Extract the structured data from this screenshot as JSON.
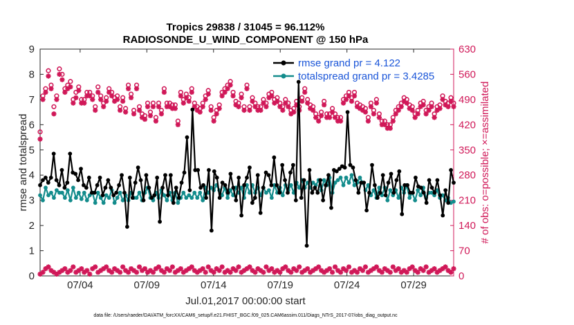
{
  "chart_data": {
    "type": "line",
    "title": "Tropics 29838 / 31045 = 96.112%",
    "subtitle": "RADIOSONDE_U_WIND_COMPONENT @ 150 hPa",
    "xlabel": "Jul.01,2017 00:00:00 start",
    "ylabel": "rmse and totalspread",
    "ylabel_right": "# of obs: o=possible; ×=assimilated",
    "xlim": [
      0,
      31
    ],
    "ylim": [
      0,
      9
    ],
    "ylim_right": [
      0,
      630
    ],
    "x_ticks": [
      {
        "x": 3,
        "label": "07/04"
      },
      {
        "x": 8,
        "label": "07/09"
      },
      {
        "x": 13,
        "label": "07/14"
      },
      {
        "x": 18,
        "label": "07/19"
      },
      {
        "x": 23,
        "label": "07/24"
      },
      {
        "x": 28,
        "label": "07/29"
      }
    ],
    "y_ticks": [
      "0",
      "1",
      "2",
      "3",
      "4",
      "5",
      "6",
      "7",
      "8",
      "9"
    ],
    "y_ticks_right": [
      "0",
      "70",
      "140",
      "210",
      "280",
      "350",
      "420",
      "490",
      "560",
      "630"
    ],
    "legend": [
      "rmse grand pr = 4.122",
      "totalspread grand pr = 3.4285"
    ],
    "legend_position": "top-right",
    "footer": "data file: /Users/raeder/DAI/ATM_forcXX/CAM6_setup/f.e21.FHIST_BGC.f09_025.CAM6assim.011/Diags_NTrS_2017-07/obs_diag_output.nc",
    "colors": {
      "rmse": "#000000",
      "totalspread": "#138c8c",
      "obs": "#d01858",
      "legend_text": "#1a55d8"
    },
    "series": [
      {
        "name": "rmse",
        "style": "line-filled-circle",
        "values": [
          3.6,
          3.8,
          3.9,
          3.7,
          3.9,
          4.85,
          3.8,
          3.6,
          4.2,
          3.5,
          3.7,
          4.85,
          4.1,
          4.05,
          3.8,
          4.25,
          3.6,
          3.5,
          3.9,
          3.3,
          3.3,
          3.6,
          3.9,
          3.2,
          3.5,
          3.8,
          3.5,
          3.2,
          3.3,
          3.6,
          4.0,
          3.3,
          1.95,
          3.9,
          3.1,
          3.7,
          4.3,
          3.8,
          3.0,
          4.0,
          3.5,
          3.1,
          3.2,
          3.9,
          2.15,
          3.5,
          4.0,
          3.2,
          4.0,
          2.9,
          3.5,
          3.1,
          3.7,
          4.1,
          5.5,
          3.4,
          6.6,
          4.2,
          4.2,
          3.5,
          3.6,
          3.1,
          4.2,
          1.8,
          4.15,
          3.9,
          3.1,
          3.7,
          3.6,
          3.3,
          4.05,
          3.5,
          3.0,
          3.9,
          2.4,
          3.6,
          3.9,
          4.3,
          2.9,
          3.1,
          4.0,
          2.5,
          3.5,
          4.1,
          4.0,
          3.6,
          4.7,
          3.6,
          3.3,
          4.4,
          3.8,
          3.3,
          4.1,
          4.4,
          3.0,
          7.7,
          3.1,
          3.8,
          1.2,
          4.2,
          3.3,
          3.5,
          3.3,
          3.8,
          3.0,
          3.6,
          4.0,
          2.7,
          4.2,
          4.15,
          4.25,
          4.35,
          4.3,
          6.5,
          4.4,
          4.3,
          3.8,
          3.3,
          3.7,
          3.7,
          2.6,
          3.3,
          4.4,
          3.6,
          3.1,
          3.3,
          4.0,
          3.2,
          3.7,
          4.05,
          3.3,
          3.8,
          4.15,
          2.45,
          3.6,
          3.6,
          3.3,
          3.3,
          3.9,
          3.55,
          3.5,
          3.3,
          2.9,
          3.8,
          3.5,
          3.3,
          3.8,
          3.2,
          2.4,
          3.4,
          2.9,
          4.2,
          3.7
        ]
      },
      {
        "name": "totalspread",
        "style": "line-filled-circle",
        "values": [
          3.2,
          3.0,
          3.5,
          3.2,
          3.3,
          3.1,
          3.4,
          3.3,
          3.3,
          3.1,
          3.4,
          3.0,
          3.5,
          3.1,
          3.3,
          3.05,
          3.3,
          3.0,
          3.2,
          3.3,
          2.9,
          3.3,
          3.1,
          2.9,
          3.2,
          3.1,
          3.4,
          2.9,
          3.1,
          3.3,
          3.0,
          3.2,
          3.0,
          3.3,
          3.1,
          3.1,
          3.3,
          3.0,
          3.3,
          3.5,
          3.1,
          3.0,
          3.3,
          3.1,
          3.4,
          3.2,
          3.0,
          3.3,
          3.0,
          3.3,
          2.9,
          3.1,
          3.3,
          3.1,
          3.2,
          3.1,
          3.3,
          3.1,
          3.3,
          3.0,
          3.5,
          3.3,
          3.5,
          3.4,
          3.6,
          3.4,
          3.2,
          3.5,
          3.1,
          3.4,
          3.2,
          3.5,
          3.3,
          3.5,
          3.1,
          3.6,
          3.3,
          3.6,
          3.3,
          3.5,
          3.2,
          3.5,
          3.3,
          3.4,
          3.1,
          3.6,
          3.3,
          3.5,
          3.2,
          3.6,
          3.4,
          3.6,
          3.3,
          3.7,
          3.5,
          3.8,
          3.5,
          3.7,
          3.5,
          3.7,
          3.6,
          3.8,
          3.4,
          3.8,
          3.6,
          3.9,
          3.3,
          3.7,
          3.8,
          3.9,
          3.6,
          3.9,
          3.7,
          4.0,
          3.6,
          3.7,
          3.9,
          3.7,
          3.4,
          3.6,
          3.2,
          3.4,
          3.1,
          3.5,
          3.2,
          3.5,
          3.0,
          3.4,
          3.2,
          3.4,
          3.1,
          3.5,
          3.3,
          3.6,
          3.1,
          3.3,
          3.0,
          3.4,
          3.2,
          3.5,
          3.1,
          3.3,
          3.3,
          3.2,
          3.4,
          3.1,
          3.2,
          3.0,
          3.1,
          2.9,
          2.95
        ]
      },
      {
        "name": "obs possible",
        "axis": "right",
        "style": "open-circle",
        "values": [
          400,
          500,
          520,
          570,
          530,
          470,
          500,
          575,
          560,
          520,
          530,
          540,
          490,
          510,
          525,
          490,
          490,
          510,
          510,
          500,
          470,
          525,
          500,
          480,
          495,
          520,
          510,
          495,
          500,
          470,
          495,
          465,
          530,
          505,
          460,
          530,
          470,
          450,
          445,
          480,
          455,
          480,
          440,
          480,
          460,
          520,
          480,
          480,
          475,
          475,
          430,
          510,
          490,
          505,
          495,
          520,
          480,
          470,
          465,
          480,
          500,
          515,
          470,
          440,
          460,
          475,
          510,
          520,
          530,
          540,
          510,
          485,
          480,
          505,
          470,
          530,
          470,
          495,
          480,
          470,
          470,
          490,
          480,
          505,
          510,
          490,
          495,
          480,
          470,
          490,
          480,
          460,
          465,
          485,
          470,
          495,
          520,
          490,
          475,
          470,
          450,
          440,
          455,
          485,
          450,
          450,
          465,
          450,
          440,
          440,
          490,
          500,
          510,
          495,
          510,
          480,
          475,
          470,
          465,
          440,
          480,
          460,
          490,
          450,
          430,
          430,
          420,
          420,
          440,
          460,
          470,
          480,
          495,
          490,
          475,
          470,
          450,
          460,
          480,
          485,
          460,
          470,
          480,
          450,
          470,
          475,
          500,
          485,
          480,
          495,
          480
        ]
      },
      {
        "name": "obs assimilated",
        "axis": "right",
        "style": "asterisk",
        "values": [
          380,
          490,
          510,
          555,
          520,
          450,
          490,
          560,
          545,
          510,
          520,
          525,
          480,
          495,
          515,
          480,
          480,
          500,
          500,
          490,
          460,
          510,
          490,
          470,
          485,
          510,
          500,
          485,
          490,
          460,
          485,
          455,
          520,
          495,
          450,
          520,
          460,
          440,
          435,
          470,
          445,
          470,
          430,
          470,
          450,
          510,
          470,
          470,
          465,
          465,
          420,
          500,
          480,
          495,
          485,
          510,
          470,
          460,
          455,
          470,
          490,
          505,
          460,
          430,
          450,
          465,
          500,
          510,
          520,
          530,
          500,
          475,
          470,
          495,
          460,
          520,
          460,
          485,
          470,
          460,
          460,
          480,
          470,
          495,
          500,
          480,
          485,
          470,
          460,
          480,
          470,
          450,
          455,
          475,
          460,
          485,
          510,
          480,
          465,
          460,
          440,
          430,
          445,
          475,
          440,
          440,
          455,
          440,
          430,
          430,
          480,
          490,
          500,
          485,
          500,
          470,
          465,
          460,
          455,
          430,
          470,
          450,
          480,
          440,
          420,
          420,
          410,
          410,
          430,
          450,
          460,
          470,
          485,
          480,
          465,
          460,
          440,
          450,
          470,
          475,
          450,
          460,
          470,
          440,
          460,
          465,
          490,
          475,
          470,
          485,
          470
        ]
      },
      {
        "name": "obs rejected",
        "axis": "right",
        "style": "asterisk",
        "values": [
          5,
          10,
          20,
          25,
          15,
          10,
          5,
          10,
          15,
          20,
          10,
          15,
          25,
          10,
          15,
          20,
          10,
          15,
          5,
          20,
          25,
          10,
          15,
          20,
          25,
          15,
          10,
          20,
          15,
          10,
          25,
          15,
          10,
          20,
          15,
          10,
          25,
          15,
          20,
          10,
          15,
          10,
          20,
          25,
          15,
          10,
          20,
          15,
          25,
          10,
          15,
          20,
          10,
          15,
          20,
          25,
          15,
          10,
          15,
          20,
          10,
          25,
          15,
          10,
          20,
          15,
          25,
          10,
          15,
          10,
          20,
          15,
          25,
          10,
          15,
          20,
          25,
          15,
          10,
          20,
          15,
          10,
          25,
          15,
          20,
          10,
          15,
          10,
          20,
          25,
          15,
          10,
          20,
          15,
          25,
          10,
          15,
          20,
          10,
          15,
          20,
          25,
          15,
          10,
          15,
          20,
          10,
          25,
          15,
          10,
          20,
          15,
          25,
          10,
          15,
          10,
          20,
          15,
          25,
          10,
          15,
          20,
          25,
          15,
          10,
          20,
          15,
          10,
          25,
          15,
          20,
          10,
          15,
          10,
          20,
          25,
          15,
          10,
          20,
          15,
          25,
          10,
          15,
          20,
          10,
          15,
          20,
          25,
          15,
          10,
          20
        ]
      }
    ]
  }
}
